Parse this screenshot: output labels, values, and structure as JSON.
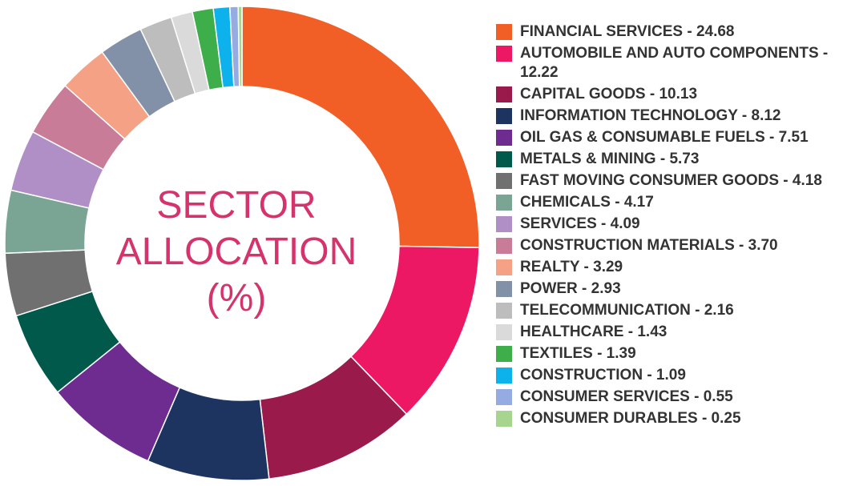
{
  "chart_data": {
    "type": "pie",
    "title_lines": [
      "SECTOR",
      "ALLOCATION",
      "(%)"
    ],
    "slices": [
      {
        "label": "FINANCIAL SERVICES - 24.68",
        "value": 24.68,
        "color": "#f15f26"
      },
      {
        "label": "AUTOMOBILE AND AUTO COMPONENTS - 12.22",
        "value": 12.22,
        "color": "#ec1864"
      },
      {
        "label": "CAPITAL GOODS - 10.13",
        "value": 10.13,
        "color": "#9b1a4c"
      },
      {
        "label": "INFORMATION TECHNOLOGY - 8.12",
        "value": 8.12,
        "color": "#1d3461"
      },
      {
        "label": "OIL GAS & CONSUMABLE FUELS - 7.51",
        "value": 7.51,
        "color": "#6e2b90"
      },
      {
        "label": "METALS & MINING - 5.73",
        "value": 5.73,
        "color": "#00594a"
      },
      {
        "label": "FAST MOVING CONSUMER GOODS - 4.18",
        "value": 4.18,
        "color": "#707070"
      },
      {
        "label": "CHEMICALS - 4.17",
        "value": 4.17,
        "color": "#7aa595"
      },
      {
        "label": "SERVICES - 4.09",
        "value": 4.09,
        "color": "#b08fc7"
      },
      {
        "label": "CONSTRUCTION MATERIALS - 3.70",
        "value": 3.7,
        "color": "#c97c97"
      },
      {
        "label": "REALTY - 3.29",
        "value": 3.29,
        "color": "#f5a186"
      },
      {
        "label": "POWER - 2.93",
        "value": 2.93,
        "color": "#8291a7"
      },
      {
        "label": "TELECOMMUNICATION - 2.16",
        "value": 2.16,
        "color": "#bdbdbd"
      },
      {
        "label": "HEALTHCARE - 1.43",
        "value": 1.43,
        "color": "#dadada"
      },
      {
        "label": "TEXTILES - 1.39",
        "value": 1.39,
        "color": "#3dae4a"
      },
      {
        "label": "CONSTRUCTION - 1.09",
        "value": 1.09,
        "color": "#0db2ec"
      },
      {
        "label": "CONSUMER SERVICES - 0.55",
        "value": 0.55,
        "color": "#97abe3"
      },
      {
        "label": "CONSUMER DURABLES - 0.25",
        "value": 0.25,
        "color": "#a7d48f"
      }
    ],
    "legend_position": "right"
  }
}
